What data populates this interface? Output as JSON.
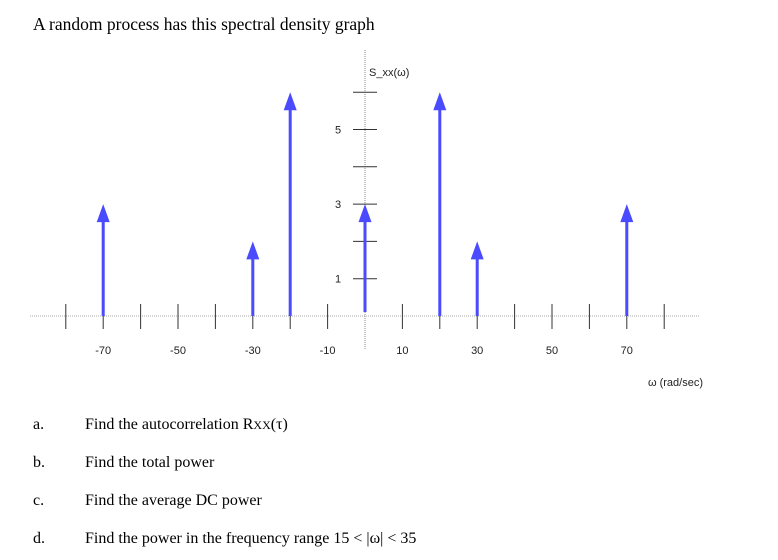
{
  "title": "A random process has this spectral density graph",
  "chart_data": {
    "type": "impulse",
    "ylabel": "S_xx(ω)",
    "xlabel": "ω (rad/sec)",
    "x_tick_labels": [
      "-70",
      "-50",
      "-30",
      "-10",
      "10",
      "30",
      "50",
      "70"
    ],
    "y_tick_labels": [
      "5",
      "3",
      "1"
    ],
    "xlim": [
      -80,
      80
    ],
    "ylim": [
      0,
      6
    ],
    "impulses": [
      {
        "x": -70,
        "y": 3
      },
      {
        "x": -30,
        "y": 2
      },
      {
        "x": -20,
        "y": 6
      },
      {
        "x": 0,
        "y": 3
      },
      {
        "x": 20,
        "y": 6
      },
      {
        "x": 30,
        "y": 2
      },
      {
        "x": 70,
        "y": 3
      }
    ],
    "color": "#4a4aff"
  },
  "questions": [
    {
      "label": "a.",
      "text": "Find the autocorrelation R",
      "sub": "XX",
      "tail": "(τ)"
    },
    {
      "label": "b.",
      "text": "Find the total power"
    },
    {
      "label": "c.",
      "text": "Find the average DC power"
    },
    {
      "label": "d.",
      "text": "Find the power in the frequency range 15 < |ω| < 35"
    }
  ]
}
